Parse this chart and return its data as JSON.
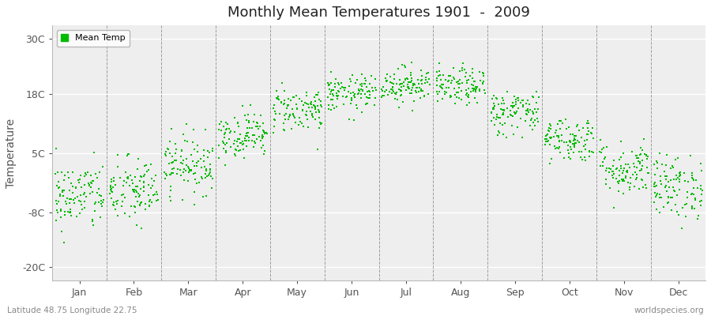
{
  "title": "Monthly Mean Temperatures 1901  -  2009",
  "ylabel": "Temperature",
  "yticks": [
    -20,
    -8,
    5,
    18,
    30
  ],
  "ytick_labels": [
    "-20C",
    "-8C",
    "5C",
    "18C",
    "30C"
  ],
  "ylim": [
    -23,
    33
  ],
  "months": [
    "Jan",
    "Feb",
    "Mar",
    "Apr",
    "May",
    "Jun",
    "Jul",
    "Aug",
    "Sep",
    "Oct",
    "Nov",
    "Dec"
  ],
  "dot_color": "#00bb00",
  "dot_size": 2,
  "background_color": "#ffffff",
  "plot_bg_color": "#eeeeee",
  "subtitle": "Latitude 48.75 Longitude 22.75",
  "watermark": "worldspecies.org",
  "legend_label": "Mean Temp",
  "mean_temps": [
    -4.5,
    -3.5,
    2.5,
    9.0,
    14.5,
    18.0,
    20.0,
    19.5,
    14.0,
    8.0,
    1.5,
    -2.5
  ],
  "std_devs": [
    3.8,
    3.8,
    3.2,
    2.5,
    2.5,
    2.0,
    2.0,
    2.0,
    2.5,
    2.5,
    3.0,
    3.5
  ],
  "n_years": 109,
  "figsize": [
    9.0,
    4.0
  ],
  "dpi": 100
}
